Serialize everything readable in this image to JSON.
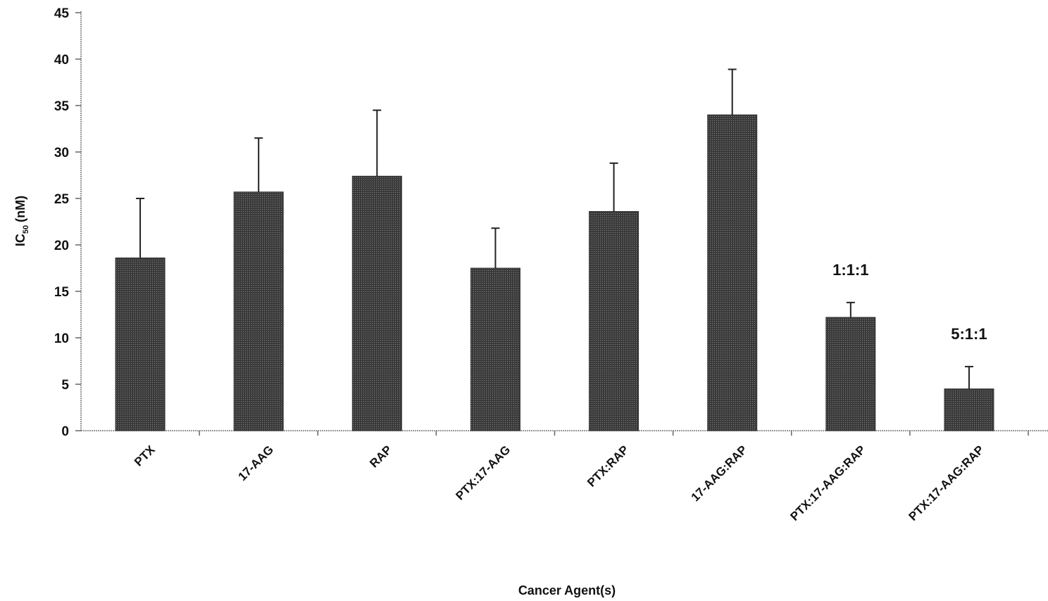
{
  "chart_data": {
    "type": "bar",
    "categories": [
      "PTX",
      "17-AAG",
      "RAP",
      "PTX:17-AAG",
      "PTX:RAP",
      "17-AAG:RAP",
      "PTX:17-AAG:RAP",
      "PTX:17-AAG:RAP"
    ],
    "values": [
      18.6,
      25.7,
      27.4,
      17.5,
      23.6,
      34.0,
      12.2,
      4.5
    ],
    "errors": [
      6.4,
      5.8,
      7.1,
      4.3,
      5.2,
      4.9,
      1.6,
      2.4
    ],
    "annotations": [
      "",
      "",
      "",
      "",
      "",
      "",
      "1:1:1",
      "5:1:1"
    ],
    "title": "",
    "xlabel": "Cancer Agent(s)",
    "ylabel": {
      "main": "IC",
      "sub": "50",
      "unit": "(nM)"
    },
    "ylim": [
      0,
      45
    ],
    "yticks": [
      0,
      5,
      10,
      15,
      20,
      25,
      30,
      35,
      40,
      45
    ],
    "grid": false,
    "legend": "none",
    "bar_color": "#4a4a4a"
  }
}
